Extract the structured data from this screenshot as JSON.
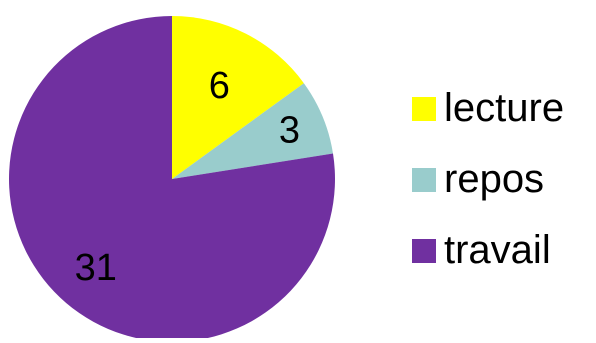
{
  "chart_data": {
    "type": "pie",
    "categories": [
      "lecture",
      "repos",
      "travail"
    ],
    "values": [
      6,
      3,
      31
    ],
    "data_labels": [
      "6",
      "3",
      "31"
    ],
    "colors": [
      "#FFFF00",
      "#99CCCC",
      "#7030A0"
    ],
    "start_angle": "12 o'clock, clockwise",
    "title": "",
    "legend": {
      "position": "right",
      "entries": [
        "lecture",
        "repos",
        "travail"
      ]
    }
  }
}
